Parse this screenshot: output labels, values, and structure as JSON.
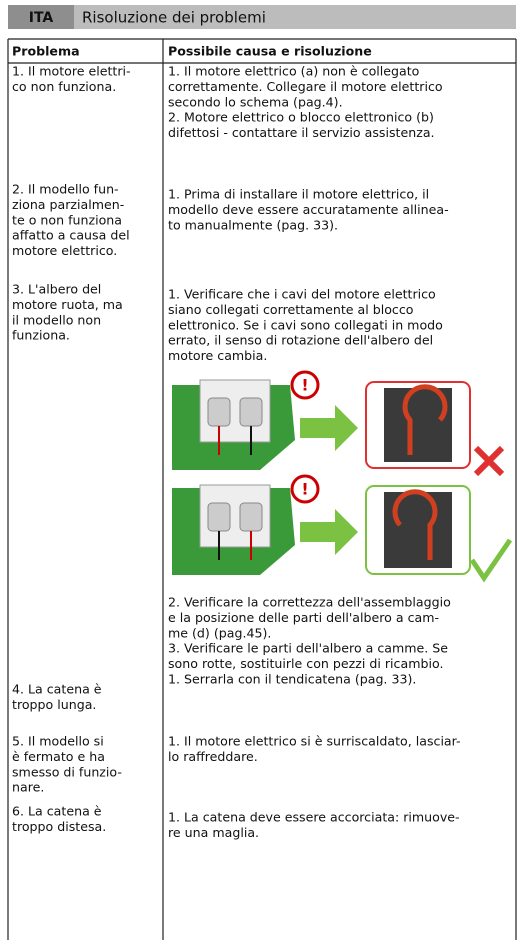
{
  "header": {
    "lang": "ITA",
    "title": "Risoluzione dei problemi"
  },
  "table": {
    "columns": [
      "Problema",
      "Possibile causa e risoluzione"
    ],
    "rows": [
      {
        "problem": [
          "1. Il motore elettri-",
          "co non funziona."
        ],
        "solution": [
          "1. Il motore elettrico (a) non è collegato",
          "correttamente. Collegare il motore elettrico",
          "secondo lo schema (pag.4).",
          "2. Motore elettrico o blocco elettronico (b)",
          "difettosi - contattare il servizio assistenza."
        ]
      },
      {
        "problem": [
          "2. Il modello fun-",
          "ziona parzialmen-",
          "te o non funziona",
          "affatto a causa del",
          "motore elettrico."
        ],
        "solution": [
          "1. Prima di installare il motore elettrico, il",
          "modello deve essere accuratamente allinea-",
          "to manualmente (pag. 33)."
        ]
      },
      {
        "problem": [
          "3. L'albero del",
          "motore ruota, ma",
          "il modello non",
          "funziona."
        ],
        "solution": [
          "1. Verificare che i cavi del motore elettrico",
          "siano collegati correttamente al blocco",
          "elettronico. Se i cavi sono collegati in modo",
          "errato, il senso di rotazione dell'albero del",
          "motore cambia."
        ],
        "solution_after_image": [
          "2. Verificare la correttezza dell'assemblaggio",
          "e la posizione delle parti dell'albero a cam-",
          "me (d) (pag.45).",
          "3. Verificare le parti dell'albero a camme. Se",
          "sono rotte, sostituirle con pezzi di ricambio."
        ]
      },
      {
        "problem": [
          "4. La catena è",
          "troppo lunga."
        ],
        "solution": [
          "1. Serrarla con il tendicatena (pag. 33)."
        ]
      },
      {
        "problem": [
          "5. Il modello si",
          "è fermato e ha",
          "smesso di funzio-",
          "nare."
        ],
        "solution": [
          "1. Il motore elettrico si è surriscaldato, lasciar-",
          "lo raffreddare."
        ]
      },
      {
        "problem": [
          "6. La catena è",
          "troppo distesa."
        ],
        "solution": [
          "1. La catena deve essere accorciata: rimuove-",
          "re una maglia."
        ]
      }
    ]
  }
}
